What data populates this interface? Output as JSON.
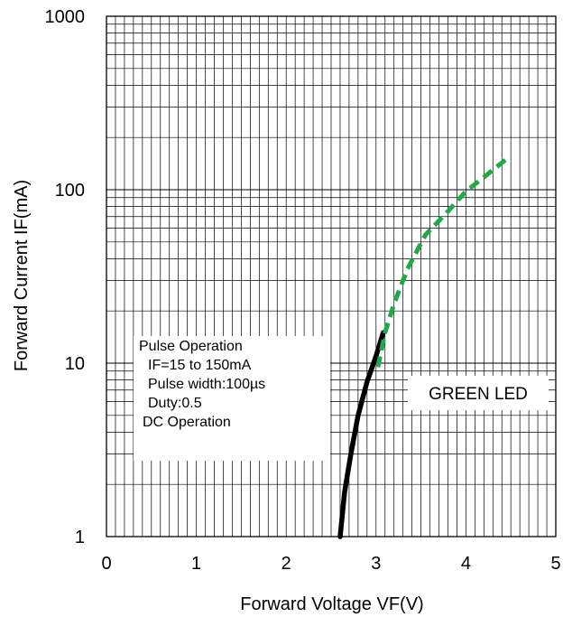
{
  "chart_data": {
    "type": "line",
    "xlabel": "Forward Voltage VF(V)",
    "ylabel": "Forward Current IF(mA)",
    "xlim": [
      0,
      5
    ],
    "ylim": [
      1,
      1000
    ],
    "yscale": "log",
    "grid": true,
    "x_tick_labels": [
      "0",
      "1",
      "2",
      "3",
      "4",
      "5"
    ],
    "y_tick_labels": [
      "1",
      "10",
      "100",
      "1000"
    ],
    "series": [
      {
        "style": "solid",
        "color": "#000000",
        "x": [
          2.6,
          2.65,
          2.72,
          2.8,
          2.9,
          3.0,
          3.08
        ],
        "y": [
          1,
          1.8,
          3.0,
          5.0,
          7.8,
          11,
          15
        ]
      },
      {
        "style": "dashed",
        "color": "#1faa45",
        "x": [
          3.02,
          3.1,
          3.2,
          3.35,
          3.55,
          3.8,
          4.0,
          4.2,
          4.45
        ],
        "y": [
          9.5,
          15,
          22,
          35,
          55,
          75,
          98,
          118,
          150
        ]
      }
    ],
    "annotations": {
      "box_lines": [
        "Pulse Operation",
        "IF=15 to 150mA",
        "Pulse width:100µs",
        "Duty:0.5",
        "DC Operation"
      ],
      "series_label": "GREEN LED"
    }
  }
}
